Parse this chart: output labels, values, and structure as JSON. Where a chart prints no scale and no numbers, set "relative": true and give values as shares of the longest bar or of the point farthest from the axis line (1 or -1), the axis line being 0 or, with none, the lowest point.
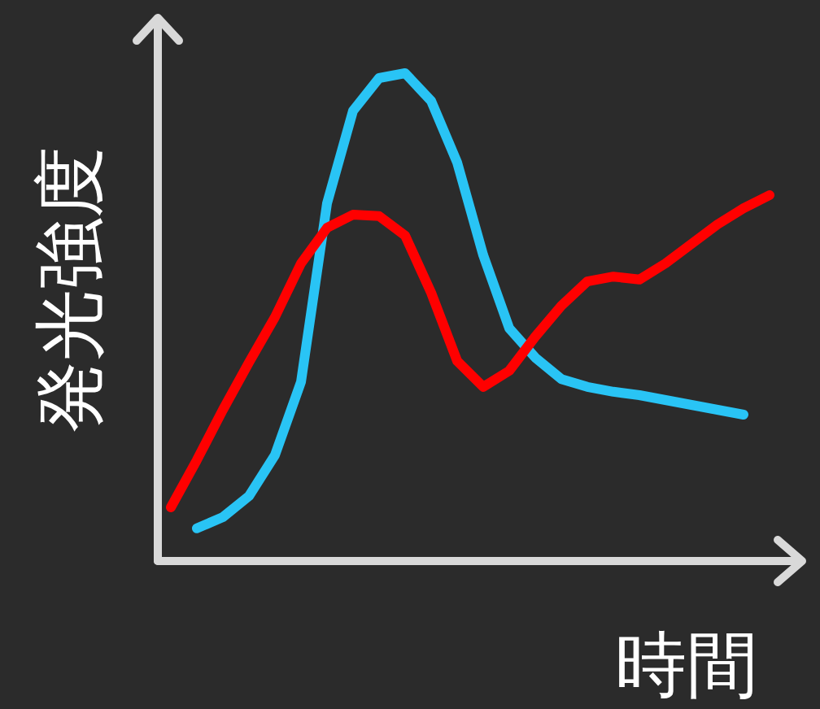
{
  "chart_data": {
    "type": "line",
    "relative": true,
    "xlabel": "時間",
    "ylabel": "発光強度",
    "categories": [
      null,
      null,
      null,
      null,
      null,
      null,
      null,
      null,
      null,
      null,
      null,
      null,
      null,
      null,
      null,
      null,
      null,
      null,
      null,
      null,
      null,
      null,
      null,
      null
    ],
    "series": [
      {
        "color": "#29c4f5",
        "values": [
          null,
          0.067,
          0.09,
          0.133,
          0.217,
          0.367,
          0.733,
          0.923,
          0.99,
          1,
          0.943,
          0.817,
          0.627,
          0.477,
          0.417,
          0.373,
          0.357,
          0.347,
          0.34,
          0.33,
          0.32,
          0.31,
          0.3,
          null
        ]
      },
      {
        "color": "#ff0000",
        "values": [
          0.11,
          0.207,
          0.31,
          0.407,
          0.5,
          0.61,
          0.683,
          0.71,
          0.707,
          0.667,
          0.55,
          0.41,
          0.357,
          0.39,
          0.46,
          0.523,
          0.573,
          0.583,
          0.577,
          0.61,
          0.65,
          0.69,
          0.723,
          0.75
        ]
      }
    ]
  }
}
